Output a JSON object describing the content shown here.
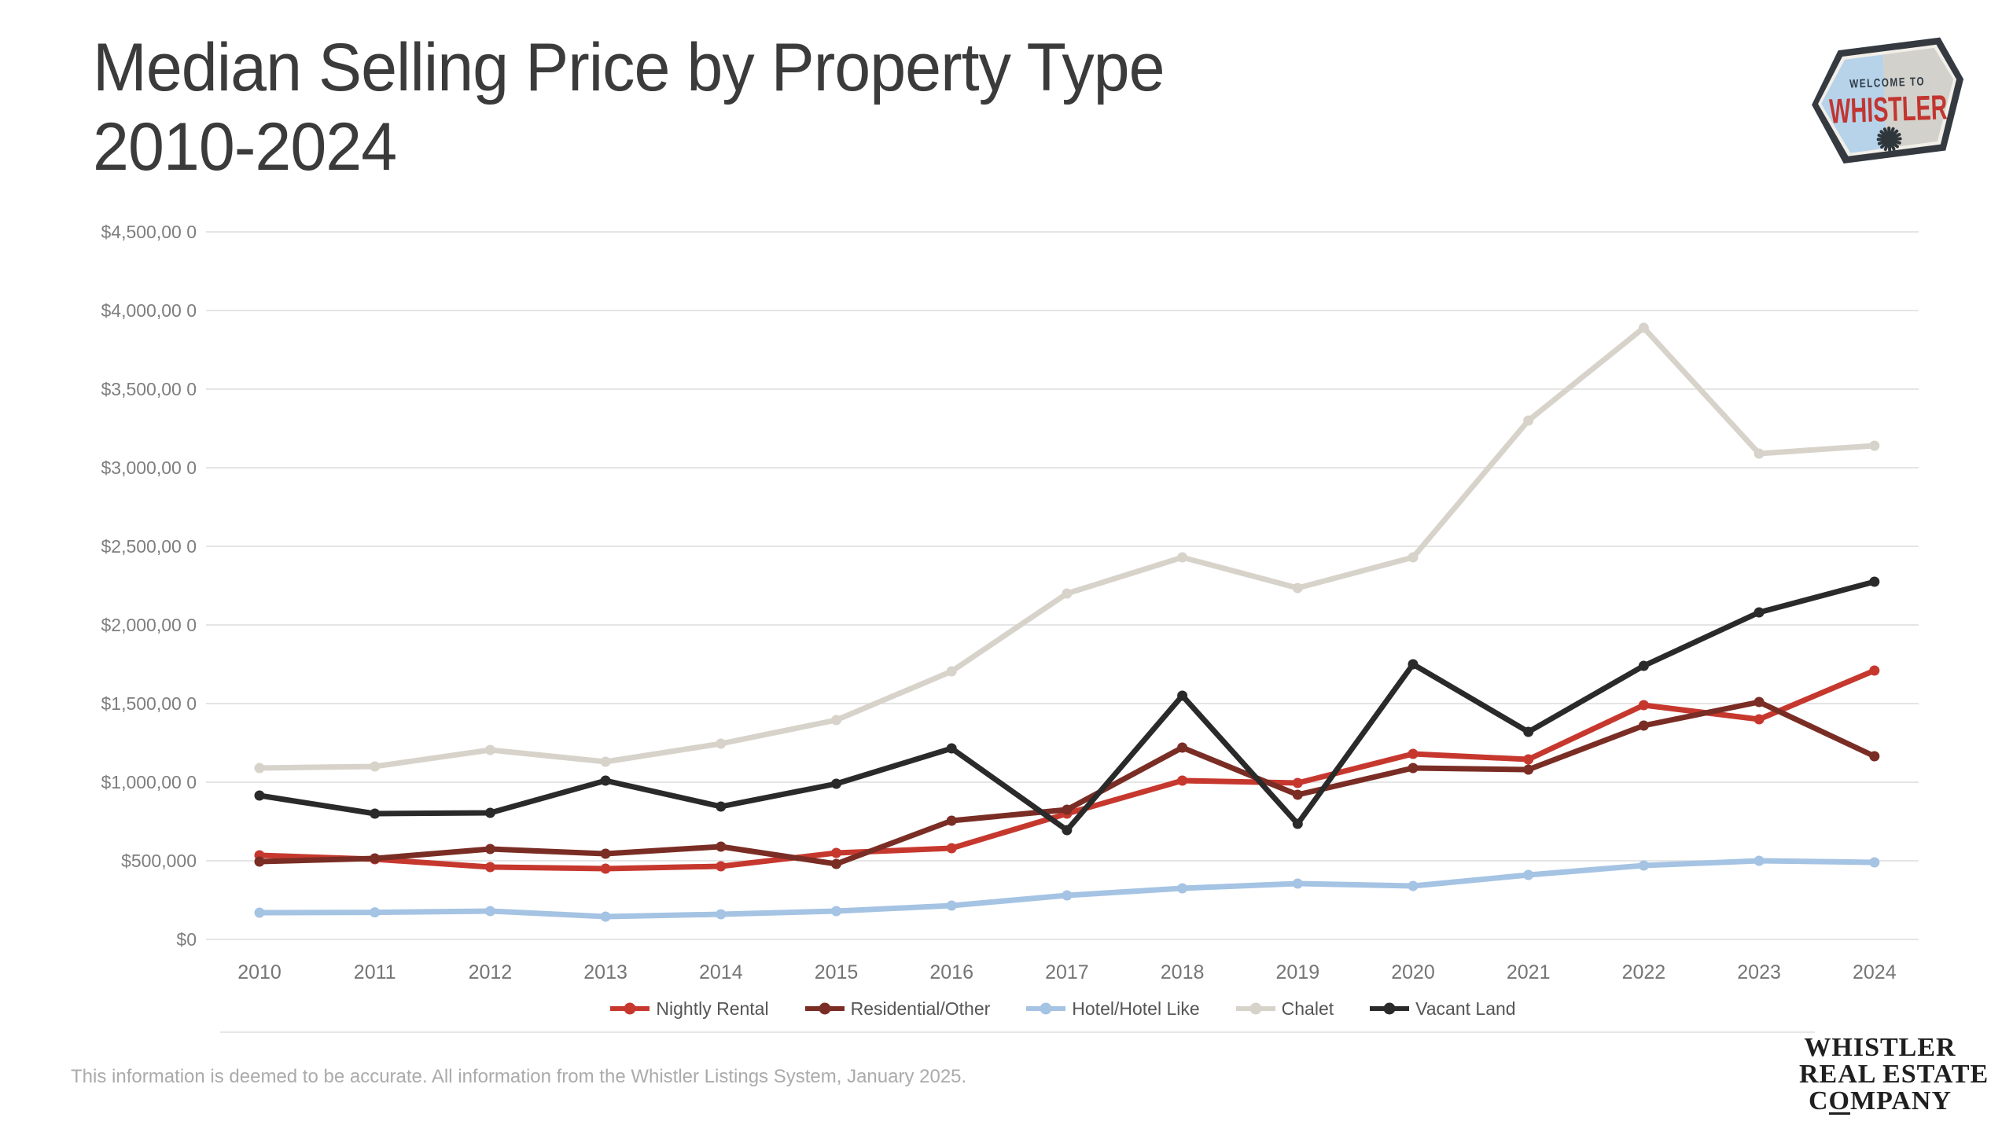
{
  "title": {
    "line1": "Median Selling Price by Property Type",
    "line2": "2010-2024"
  },
  "badge": {
    "welcome_text": "WELCOME TO",
    "name": "WHISTLER",
    "red": "#c23530",
    "blue_half": "#b6d3ea",
    "gray_half": "#d2d1cb",
    "border": "#343a40"
  },
  "footer": {
    "disclaimer": "This information is deemed to be accurate. All information from the Whistler Listings System, January 2025."
  },
  "company_logo": {
    "line1": "WHISTLER",
    "line2": "REAL ESTATE",
    "line3_prefix": "C",
    "line3_underlined": "O",
    "line3_suffix": "MPANY"
  },
  "chart_data": {
    "type": "line",
    "title": "Median Selling Price by Property Type 2010-2024",
    "xlabel": "",
    "ylabel": "",
    "ylim": [
      0,
      4500000
    ],
    "y_step": 500000,
    "grid": true,
    "legend_position": "bottom",
    "gridline_color": "#e5e5e5",
    "y_axis_labels": [
      "$4,500,00 0",
      "$4,000,00 0",
      "$3,500,00 0",
      "$3,000,00 0",
      "$2,500,00 0",
      "$2,000,00 0",
      "$1,500,00 0",
      "$1,000,00 0",
      "$500,000",
      "$0"
    ],
    "categories": [
      "2010",
      "2011",
      "2012",
      "2013",
      "2014",
      "2015",
      "2016",
      "2017",
      "2018",
      "2019",
      "2020",
      "2021",
      "2022",
      "2023",
      "2024"
    ],
    "series": [
      {
        "name": "Nightly Rental",
        "color": "#c6382e",
        "values": [
          535000,
          510000,
          460000,
          450000,
          465000,
          550000,
          580000,
          800000,
          1010000,
          995000,
          1180000,
          1145000,
          1490000,
          1400000,
          1710000
        ]
      },
      {
        "name": "Residential/Other",
        "color": "#7a2d24",
        "values": [
          495000,
          515000,
          575000,
          545000,
          590000,
          480000,
          755000,
          825000,
          1220000,
          920000,
          1090000,
          1080000,
          1360000,
          1510000,
          1165000
        ]
      },
      {
        "name": "Hotel/Hotel Like",
        "color": "#a5c3e3",
        "values": [
          170000,
          172000,
          180000,
          145000,
          160000,
          180000,
          215000,
          280000,
          325000,
          355000,
          340000,
          410000,
          470000,
          500000,
          490000
        ]
      },
      {
        "name": "Chalet",
        "color": "#d7d3ca",
        "values": [
          1090000,
          1100000,
          1205000,
          1130000,
          1245000,
          1395000,
          1705000,
          2200000,
          2430000,
          2235000,
          2430000,
          3300000,
          3890000,
          3090000,
          3140000
        ]
      },
      {
        "name": "Vacant Land",
        "color": "#2a2a2a",
        "values": [
          915000,
          800000,
          805000,
          1010000,
          845000,
          990000,
          1215000,
          695000,
          1550000,
          735000,
          1750000,
          1320000,
          1740000,
          2080000,
          2275000
        ]
      }
    ]
  }
}
